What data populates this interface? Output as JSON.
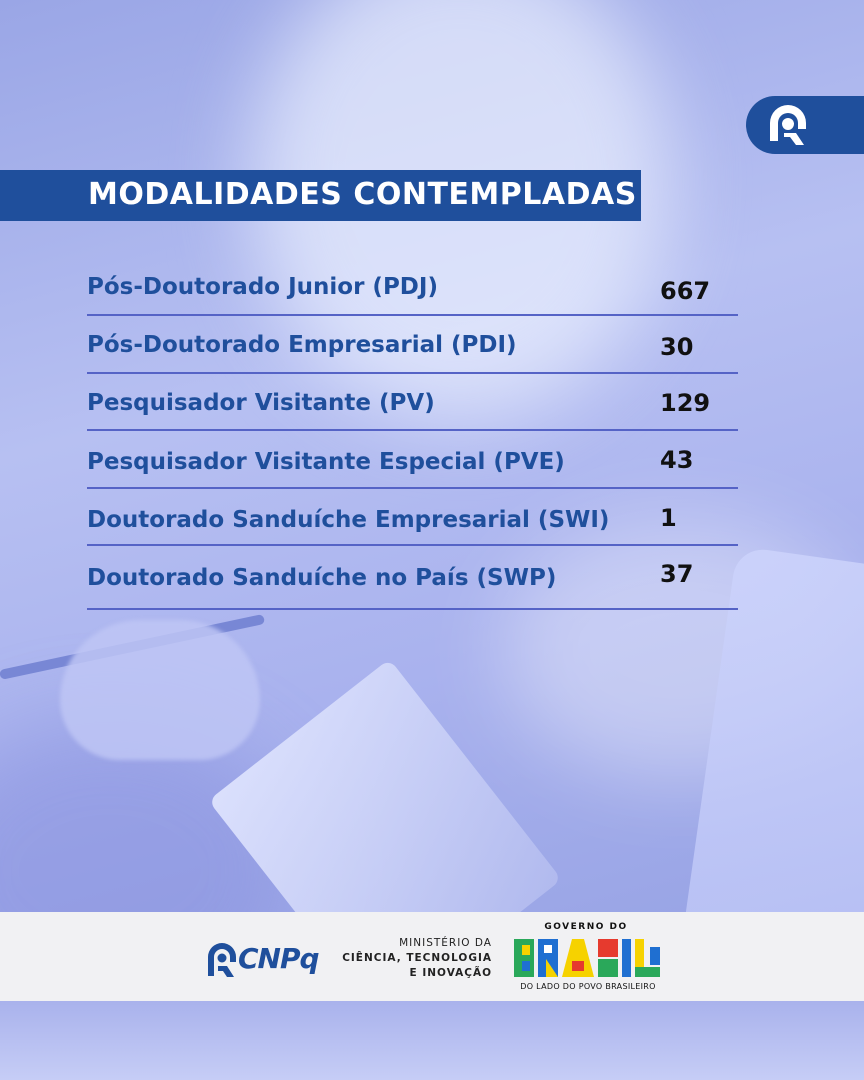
{
  "title": "MODALIDADES CONTEMPLADAS",
  "rows": [
    {
      "label": "Pós-Doutorado Junior (PDJ)",
      "value": "667"
    },
    {
      "label": "Pós-Doutorado Empresarial (PDI)",
      "value": "30"
    },
    {
      "label": "Pesquisador Visitante (PV)",
      "value": "129"
    },
    {
      "label": "Pesquisador Visitante Especial (PVE)",
      "value": "43"
    },
    {
      "label": "Doutorado Sanduíche Empresarial (SWI)",
      "value": "1"
    },
    {
      "label": "Doutorado Sanduíche no País (SWP)",
      "value": "37"
    }
  ],
  "footer": {
    "cnpq": "CNPq",
    "ministerio_line1": "MINISTÉRIO DA",
    "ministerio_line2": "CIÊNCIA, TECNOLOGIA",
    "ministerio_line3": "E INOVAÇÃO",
    "governo": "GOVERNO DO",
    "brasil": "BRASIL",
    "slogan": "DO LADO DO POVO BRASILEIRO"
  },
  "colors": {
    "brand_blue": "#1f4f9c",
    "divider": "#5563c6"
  },
  "icons": [
    "cnpq-logo-icon",
    "brasil-logo"
  ]
}
